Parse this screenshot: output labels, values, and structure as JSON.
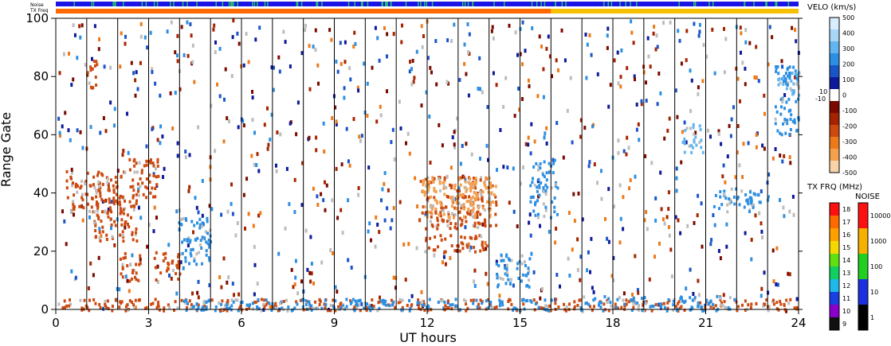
{
  "chart_data": {
    "type": "heatmap",
    "xlabel": "UT hours",
    "ylabel": "Range Gate",
    "xlim": [
      0,
      24
    ],
    "ylim": [
      0,
      100
    ],
    "x_ticks": [
      "0",
      "3",
      "6",
      "9",
      "12",
      "15",
      "18",
      "21",
      "24"
    ],
    "y_ticks": [
      "0",
      "20",
      "40",
      "60",
      "80",
      "100"
    ],
    "minor_x_step": 1,
    "top_strips": [
      {
        "label": "Noise",
        "color": "#1a14e6",
        "flecks": "#26c06a"
      },
      {
        "label": "TX Freq",
        "color": "#f5c000",
        "before_hour": 16,
        "before_color": "#ff6a00"
      }
    ],
    "velocity_colorbar": {
      "title": "VELO (km/s)",
      "ticks": [
        "500",
        "400",
        "300",
        "200",
        "100",
        "0",
        "-100",
        "-200",
        "-300",
        "-400",
        "-500"
      ],
      "inner_labels": [
        "10",
        "-10"
      ],
      "colors": [
        "#d7eeff",
        "#a8d6f7",
        "#63b5ef",
        "#2c8fe2",
        "#1a55c8",
        "#0d1a99",
        "#ffffff",
        "#7a0a00",
        "#a52400",
        "#cc4a10",
        "#ec7a1a",
        "#f5a04c",
        "#f8d2a8"
      ]
    },
    "txfreq_colorbar": {
      "title": "TX FRQ (MHz)",
      "ticks": [
        "18",
        "17",
        "16",
        "15",
        "14",
        "13",
        "12",
        "11",
        "10",
        "9"
      ],
      "colors": [
        "#ff1010",
        "#ff6a00",
        "#ffa000",
        "#f5d800",
        "#60e010",
        "#10d060",
        "#20b8e8",
        "#1a40e0",
        "#8a00c8",
        "#101010"
      ]
    },
    "noise_colorbar": {
      "title": "NOISE",
      "ticks": [
        "10000",
        "1000",
        "100",
        "10",
        "1"
      ],
      "colors": [
        "#ff1010",
        "#f5b000",
        "#20d020",
        "#1a30e0",
        "#000000"
      ]
    },
    "scatter_color": "#bdbdbd",
    "series": [
      {
        "velocity": -250,
        "points": [
          [
            0.3,
            34,
            2.2,
            14
          ],
          [
            1.2,
            24,
            2.6,
            16
          ],
          [
            2.3,
            38,
            3.3,
            14
          ],
          [
            11.7,
            28,
            14.2,
            18
          ],
          [
            11.9,
            20,
            14.0,
            6
          ],
          [
            0.9,
            76,
            1.3,
            10
          ],
          [
            3.1,
            10,
            4.0,
            10
          ],
          [
            2.0,
            10,
            2.7,
            10
          ],
          [
            0.0,
            0,
            24.0,
            4
          ]
        ]
      },
      {
        "velocity": 200,
        "points": [
          [
            14.2,
            8,
            15.3,
            12
          ],
          [
            15.3,
            32,
            16.2,
            20
          ],
          [
            16.8,
            0,
            22.0,
            5
          ],
          [
            4.0,
            0,
            16.0,
            4
          ],
          [
            23.2,
            60,
            24.0,
            24
          ],
          [
            21.2,
            34,
            23.0,
            8
          ],
          [
            3.9,
            16,
            5.0,
            16
          ]
        ]
      },
      {
        "velocity": -450,
        "points": [
          [
            11.8,
            32,
            14.0,
            14
          ],
          [
            13.0,
            36,
            14.2,
            8
          ]
        ]
      },
      {
        "velocity": 350,
        "points": [
          [
            20.2,
            54,
            20.9,
            10
          ],
          [
            23.3,
            74,
            24.0,
            8
          ]
        ]
      }
    ]
  }
}
